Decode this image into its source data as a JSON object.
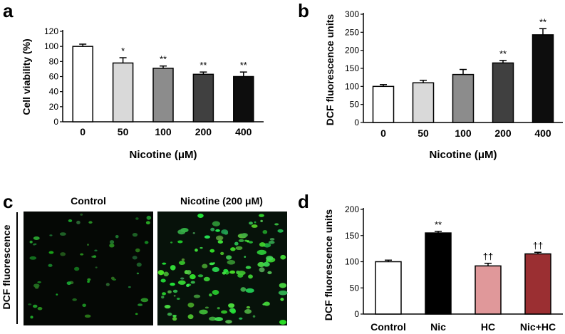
{
  "panels": {
    "a": "a",
    "b": "b",
    "c": "c",
    "d": "d"
  },
  "chart_data": [
    {
      "id": "a",
      "type": "bar",
      "xlabel": "Nicotine (μM)",
      "ylabel": "Cell viability (%)",
      "categories": [
        "0",
        "50",
        "100",
        "200",
        "400"
      ],
      "values": [
        100,
        78,
        71,
        63,
        60
      ],
      "errors": [
        3,
        7,
        3,
        3,
        6
      ],
      "significance": [
        "",
        "*",
        "**",
        "**",
        "**"
      ],
      "colors": [
        "#ffffff",
        "#d9d9d9",
        "#8c8c8c",
        "#404040",
        "#0d0d0d"
      ],
      "ylim": [
        0,
        120
      ],
      "yticks": [
        0,
        20,
        40,
        60,
        80,
        100,
        120
      ],
      "grid": false
    },
    {
      "id": "b",
      "type": "bar",
      "xlabel": "Nicotine (μM)",
      "ylabel": "DCF fluorescence units",
      "categories": [
        "0",
        "50",
        "100",
        "200",
        "400"
      ],
      "values": [
        100,
        110,
        133,
        165,
        243
      ],
      "errors": [
        5,
        7,
        14,
        7,
        17
      ],
      "significance": [
        "",
        "",
        "",
        "**",
        "**"
      ],
      "colors": [
        "#ffffff",
        "#d9d9d9",
        "#8c8c8c",
        "#404040",
        "#0d0d0d"
      ],
      "ylim": [
        0,
        300
      ],
      "yticks": [
        0,
        50,
        100,
        150,
        200,
        250,
        300
      ],
      "grid": false
    },
    {
      "id": "d",
      "type": "bar",
      "xlabel": "",
      "ylabel": "DCF fluorescence units",
      "categories": [
        "Control",
        "Nic",
        "HC",
        "Nic+HC"
      ],
      "values": [
        100,
        155,
        92,
        115
      ],
      "errors": [
        3,
        3,
        5,
        3
      ],
      "significance": [
        "",
        "**",
        "††",
        "††"
      ],
      "colors": [
        "#ffffff",
        "#000000",
        "#e0989a",
        "#9b2f32"
      ],
      "ylim": [
        0,
        200
      ],
      "yticks": [
        0,
        50,
        100,
        150,
        200
      ],
      "grid": false
    }
  ],
  "micrographs": {
    "ylabel": "DCF fluorescence",
    "titles": [
      "Control",
      "Nicotine (200 μM)"
    ]
  }
}
